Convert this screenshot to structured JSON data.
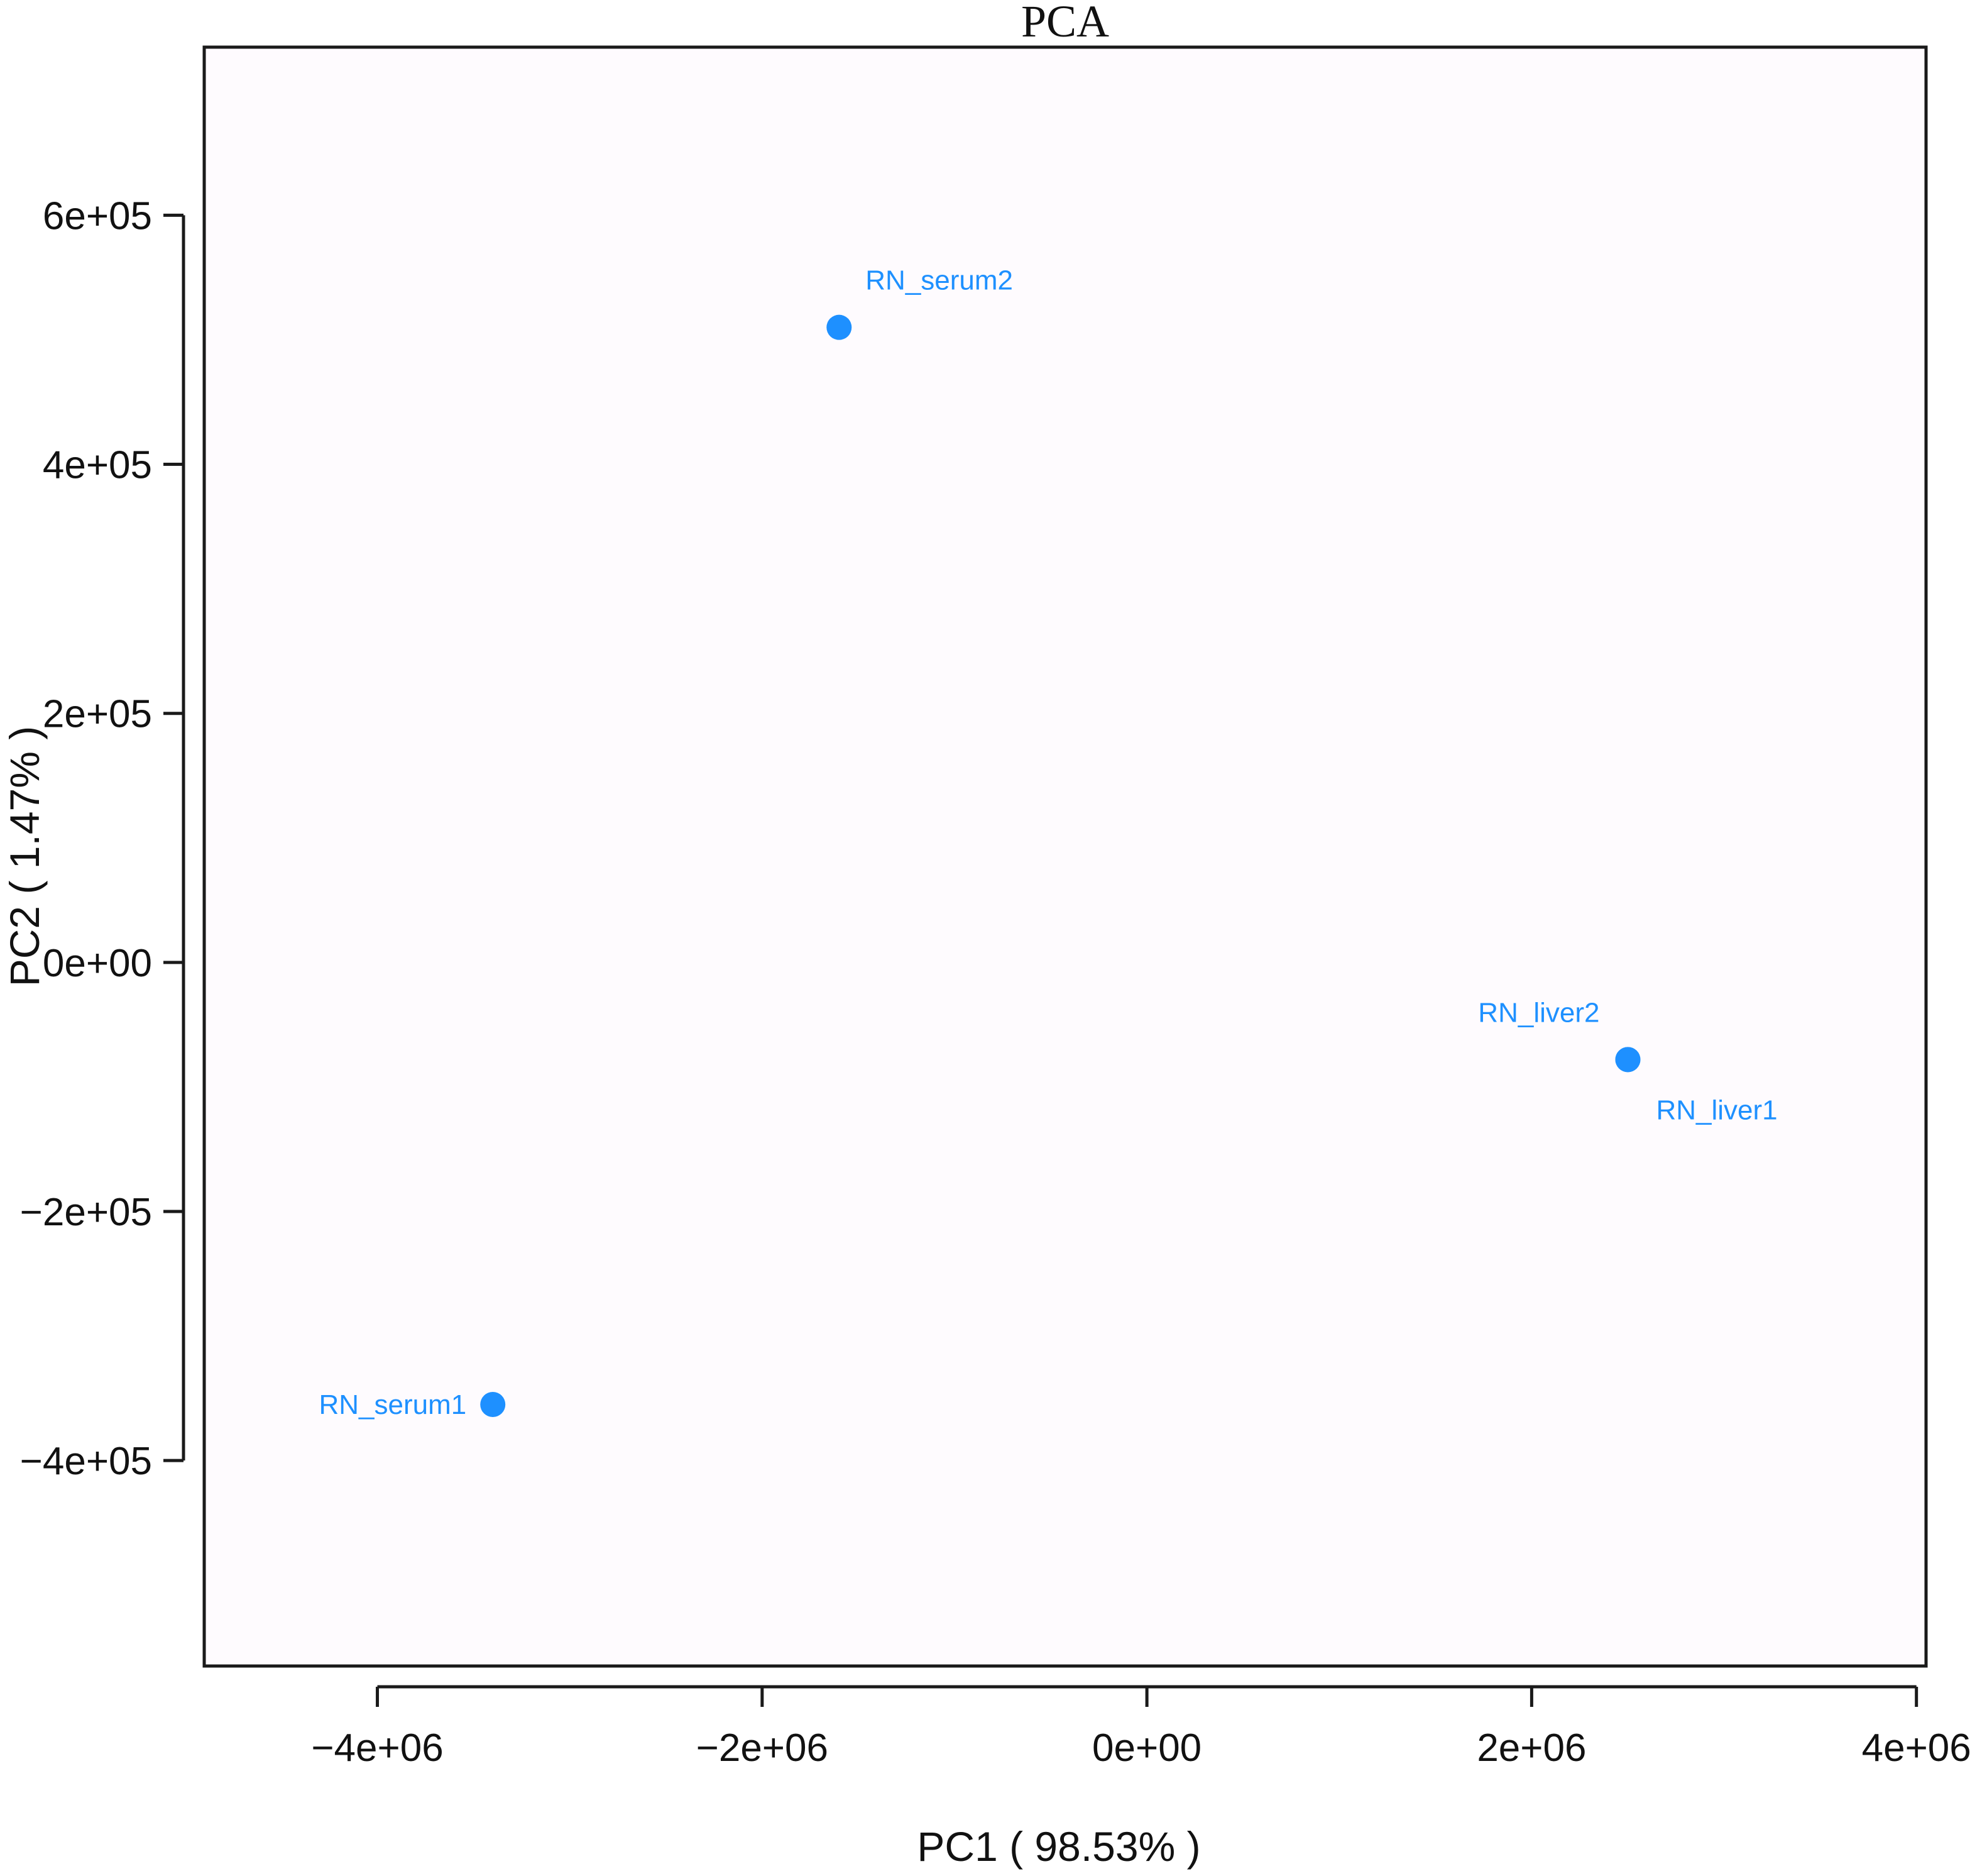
{
  "chart_data": {
    "type": "scatter",
    "title": "PCA",
    "xlabel": "PC1 (  98.53% )",
    "ylabel": "PC2 ( 1.47% )",
    "xlim": [
      -4900000.0,
      4050000.0
    ],
    "ylim": [
      -565000.0,
      735000.0
    ],
    "xticks": [
      -4000000,
      -2000000,
      0,
      2000000,
      4000000
    ],
    "xtick_labels": [
      "−4e+06",
      "−2e+06",
      "0e+00",
      "2e+06",
      "4e+06"
    ],
    "yticks": [
      -400000,
      -200000,
      0,
      200000,
      400000,
      600000
    ],
    "ytick_labels": [
      "−4e+05",
      "−2e+05",
      "0e+00",
      "2e+05",
      "4e+05",
      "6e+05"
    ],
    "grid": false,
    "point_color": "#1e90ff",
    "series": [
      {
        "points": [
          {
            "label": "RN_serum2",
            "x": -1600000,
            "y": 510000,
            "label_pos": "above-right"
          },
          {
            "label": "RN_liver2",
            "x": 2500000,
            "y": -78000,
            "label_pos": "above-left"
          },
          {
            "label": "RN_liver1",
            "x": 2500000,
            "y": -78000,
            "label_pos": "below-right"
          },
          {
            "label": "RN_serum1",
            "x": -3400000,
            "y": -355000,
            "label_pos": "left"
          }
        ]
      }
    ]
  }
}
